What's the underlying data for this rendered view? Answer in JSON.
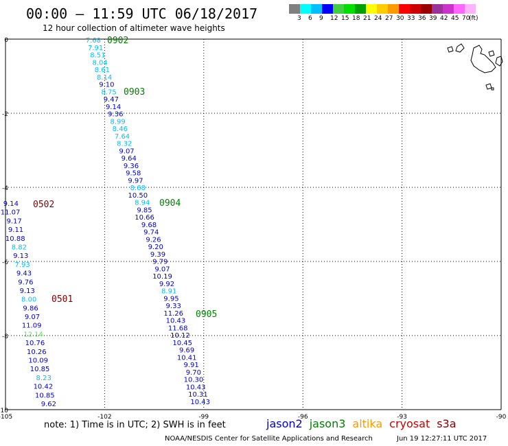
{
  "header": {
    "title": "00:00 – 11:59 UTC 06/18/2017",
    "subtitle": "12 hour collection of altimeter wave heights"
  },
  "colorbar": {
    "colors": [
      "#808080",
      "#00ffff",
      "#00bfff",
      "#0000ff",
      "#3fcf3f",
      "#00e000",
      "#00a000",
      "#ffff00",
      "#ffcc00",
      "#ff9900",
      "#ff0000",
      "#cc0000",
      "#990000",
      "#993399",
      "#cc33cc",
      "#ff66ff",
      "#ffb3ff"
    ],
    "labels": [
      "3",
      "6",
      "9",
      "12",
      "15",
      "18",
      "21",
      "24",
      "27",
      "30",
      "33",
      "36",
      "39",
      "42",
      "45",
      "70",
      "(ft)"
    ]
  },
  "map": {
    "lon_range": [
      -105,
      -90
    ],
    "lat_range": [
      -10,
      0
    ],
    "x_ticks": [
      "-105",
      "-102",
      "-99",
      "-96",
      "-93",
      "-90"
    ],
    "y_ticks": [
      "0",
      "-2",
      "-4",
      "-6",
      "-8",
      "-10"
    ]
  },
  "tracks": [
    {
      "label": "0902",
      "label_color": "#008000",
      "points": [
        {
          "v": "7.68",
          "c": "#00bfff"
        },
        {
          "v": "7.91",
          "c": "#00bfff"
        },
        {
          "v": "8.51",
          "c": "#00bfff"
        },
        {
          "v": "8.04",
          "c": "#00bfff"
        },
        {
          "v": "8.61",
          "c": "#00bfff"
        },
        {
          "v": "8.14",
          "c": "#00bfff"
        },
        {
          "v": "9.10",
          "c": "#0000cc"
        },
        {
          "v": "8.75",
          "c": "#00bfff"
        },
        {
          "v": "9.47",
          "c": "#0000cc"
        },
        {
          "v": "9.14",
          "c": "#0000cc"
        },
        {
          "v": "9.36",
          "c": "#0000cc"
        },
        {
          "v": "8.99",
          "c": "#00bfff"
        },
        {
          "v": "8.46",
          "c": "#00bfff"
        },
        {
          "v": "7.64",
          "c": "#00bfff"
        },
        {
          "v": "8.32",
          "c": "#00bfff"
        },
        {
          "v": "9.07",
          "c": "#0000cc"
        },
        {
          "v": "9.64",
          "c": "#0000cc"
        },
        {
          "v": "9.36",
          "c": "#0000cc"
        },
        {
          "v": "9.58",
          "c": "#0000cc"
        },
        {
          "v": "9.97",
          "c": "#0000cc"
        },
        {
          "v": "8.68",
          "c": "#00bfff"
        },
        {
          "v": "10.50",
          "c": "#0000cc"
        },
        {
          "v": "8.94",
          "c": "#00bfff"
        },
        {
          "v": "9.85",
          "c": "#0000cc"
        },
        {
          "v": "10.66",
          "c": "#0000cc"
        },
        {
          "v": "9.68",
          "c": "#0000cc"
        },
        {
          "v": "9.74",
          "c": "#0000cc"
        },
        {
          "v": "9.26",
          "c": "#0000cc"
        },
        {
          "v": "9.20",
          "c": "#0000cc"
        },
        {
          "v": "9.39",
          "c": "#0000cc"
        },
        {
          "v": "9.79",
          "c": "#0000cc"
        },
        {
          "v": "9.07",
          "c": "#0000cc"
        },
        {
          "v": "10.19",
          "c": "#0000cc"
        },
        {
          "v": "9.92",
          "c": "#0000cc"
        },
        {
          "v": "8.91",
          "c": "#00bfff"
        },
        {
          "v": "9.95",
          "c": "#0000cc"
        },
        {
          "v": "9.33",
          "c": "#0000cc"
        },
        {
          "v": "11.26",
          "c": "#0000cc"
        },
        {
          "v": "10.43",
          "c": "#0000cc"
        },
        {
          "v": "11.68",
          "c": "#0000cc"
        },
        {
          "v": "10.12",
          "c": "#0000cc"
        },
        {
          "v": "10.45",
          "c": "#0000cc"
        },
        {
          "v": "9.69",
          "c": "#0000cc"
        },
        {
          "v": "10.41",
          "c": "#0000cc"
        },
        {
          "v": "9.91",
          "c": "#0000cc"
        },
        {
          "v": "9.70",
          "c": "#0000cc"
        },
        {
          "v": "10.30",
          "c": "#0000cc"
        },
        {
          "v": "10.43",
          "c": "#0000cc"
        },
        {
          "v": "10.31",
          "c": "#0000cc"
        },
        {
          "v": "10.43",
          "c": "#0000cc"
        }
      ]
    },
    {
      "label": "0502",
      "label_color": "#800000",
      "points": [
        {
          "v": "9.14",
          "c": "#0000cc"
        },
        {
          "v": "11.07",
          "c": "#0000cc"
        },
        {
          "v": "9.17",
          "c": "#0000cc"
        },
        {
          "v": "9.11",
          "c": "#0000cc"
        },
        {
          "v": "10.88",
          "c": "#0000cc"
        },
        {
          "v": "8.82",
          "c": "#00bfff"
        },
        {
          "v": "9.13",
          "c": "#0000cc"
        },
        {
          "v": "7.93",
          "c": "#00bfff"
        },
        {
          "v": "9.43",
          "c": "#0000cc"
        },
        {
          "v": "9.76",
          "c": "#0000cc"
        },
        {
          "v": "9.13",
          "c": "#0000cc"
        },
        {
          "v": "8.00",
          "c": "#00bfff"
        },
        {
          "v": "9.86",
          "c": "#0000cc"
        },
        {
          "v": "9.07",
          "c": "#0000cc"
        },
        {
          "v": "11.09",
          "c": "#0000cc"
        },
        {
          "v": "12.14",
          "c": "#66dd66"
        },
        {
          "v": "10.76",
          "c": "#0000cc"
        },
        {
          "v": "10.26",
          "c": "#0000cc"
        },
        {
          "v": "10.09",
          "c": "#0000cc"
        },
        {
          "v": "10.85",
          "c": "#0000cc"
        },
        {
          "v": "8.23",
          "c": "#00bfff"
        },
        {
          "v": "10.42",
          "c": "#0000cc"
        },
        {
          "v": "10.85",
          "c": "#0000cc"
        },
        {
          "v": "9.62",
          "c": "#0000cc"
        }
      ]
    }
  ],
  "time_labels": [
    {
      "text": "0902",
      "color": "#008000"
    },
    {
      "text": "0903",
      "color": "#008000"
    },
    {
      "text": "0904",
      "color": "#008000"
    },
    {
      "text": "0905",
      "color": "#008000"
    },
    {
      "text": "0502",
      "color": "#800000"
    },
    {
      "text": "0501",
      "color": "#800000"
    }
  ],
  "footer": {
    "note": "note: 1) Time is in UTC; 2) SWH is in feet",
    "legend": [
      {
        "name": "jason2",
        "color": "#0000cc"
      },
      {
        "name": "jason3",
        "color": "#008000"
      },
      {
        "name": "altika",
        "color": "#ff9900"
      },
      {
        "name": "cryosat",
        "color": "#cc0000"
      },
      {
        "name": "s3a",
        "color": "#800000"
      }
    ],
    "credit": "NOAA/NESDIS Center for Satellite Applications and Research",
    "generated": "Jun 19 12:27:11 UTC 2017"
  }
}
